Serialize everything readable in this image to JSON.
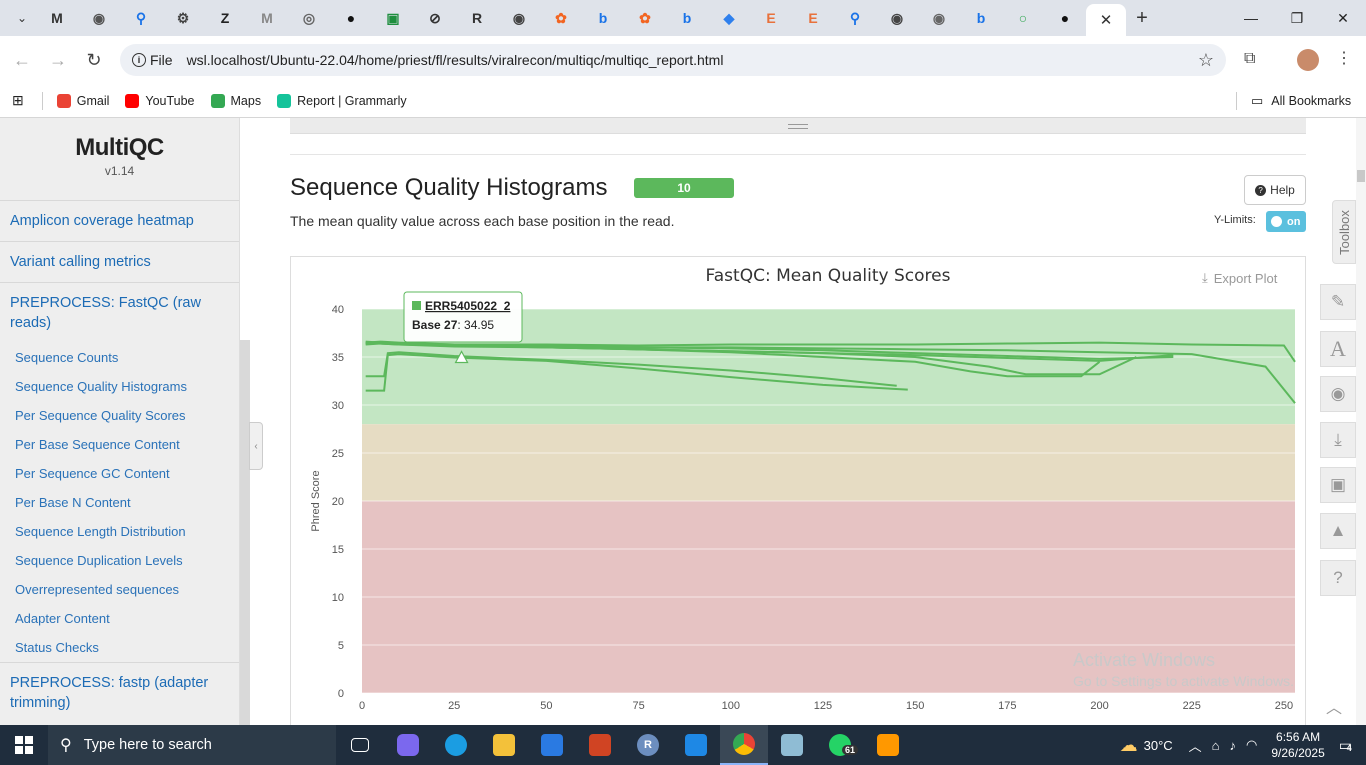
{
  "browser": {
    "tabs": [
      {
        "icon": "gmail-icon",
        "glyph": "M",
        "color": "#333333"
      },
      {
        "icon": "globe-icon",
        "glyph": "◉",
        "color": "#555555"
      },
      {
        "icon": "search-icon",
        "glyph": "⚲",
        "color": "#1a73e8"
      },
      {
        "icon": "settings-gear-icon",
        "glyph": "⚙",
        "color": "#444444"
      },
      {
        "icon": "z-logo-icon",
        "glyph": "Z",
        "color": "#222222"
      },
      {
        "icon": "mendeley-icon",
        "glyph": "M",
        "color": "#888888"
      },
      {
        "icon": "target-icon",
        "glyph": "◎",
        "color": "#666666"
      },
      {
        "icon": "github-icon",
        "glyph": "●",
        "color": "#111111"
      },
      {
        "icon": "green-app-icon",
        "glyph": "▣",
        "color": "#1e8e3e"
      },
      {
        "icon": "slash-circle-icon",
        "glyph": "⊘",
        "color": "#333333"
      },
      {
        "icon": "r6-icon",
        "glyph": "R",
        "color": "#333333"
      },
      {
        "icon": "circle-logo-icon",
        "glyph": "◉",
        "color": "#444444"
      },
      {
        "icon": "paw-icon",
        "glyph": "✿",
        "color": "#f26522"
      },
      {
        "icon": "bing-icon",
        "glyph": "b",
        "color": "#1a73e8"
      },
      {
        "icon": "paw-icon",
        "glyph": "✿",
        "color": "#f26522"
      },
      {
        "icon": "bing-icon",
        "glyph": "b",
        "color": "#1a73e8"
      },
      {
        "icon": "layers-icon",
        "glyph": "◆",
        "color": "#2f80ed"
      },
      {
        "icon": "e-letter-icon",
        "glyph": "E",
        "color": "#e8713b"
      },
      {
        "icon": "e-letter-icon",
        "glyph": "E",
        "color": "#e8713b"
      },
      {
        "icon": "search-icon",
        "glyph": "⚲",
        "color": "#1a73e8"
      },
      {
        "icon": "circle-logo-icon",
        "glyph": "◉",
        "color": "#444444"
      },
      {
        "icon": "globe-icon",
        "glyph": "◉",
        "color": "#666666"
      },
      {
        "icon": "bing-icon",
        "glyph": "b",
        "color": "#1a73e8"
      },
      {
        "icon": "ring-icon",
        "glyph": "○",
        "color": "#34a853"
      },
      {
        "icon": "github-icon",
        "glyph": "●",
        "color": "#111111"
      }
    ],
    "active_tab_close": "✕",
    "new_tab": "+",
    "url_scheme": "File",
    "url": "wsl.localhost/Ubuntu-22.04/home/priest/fl/results/viralrecon/multiqc/multiqc_report.html",
    "bookmarks": [
      {
        "label": "Gmail",
        "color": "#ea4335"
      },
      {
        "label": "YouTube",
        "color": "#ff0000"
      },
      {
        "label": "Maps",
        "color": "#34a853"
      },
      {
        "label": "Report | Grammarly",
        "color": "#15c39a"
      }
    ],
    "all_bookmarks": "All Bookmarks"
  },
  "sidebar": {
    "logo": "MultiQC",
    "version": "v1.14",
    "main_items": [
      "Amplicon coverage heatmap",
      "Variant calling metrics",
      "PREPROCESS: FastQC (raw reads)"
    ],
    "sub_items": [
      "Sequence Counts",
      "Sequence Quality Histograms",
      "Per Sequence Quality Scores",
      "Per Base Sequence Content",
      "Per Sequence GC Content",
      "Per Base N Content",
      "Sequence Length Distribution",
      "Sequence Duplication Levels",
      "Overrepresented sequences",
      "Adapter Content",
      "Status Checks"
    ],
    "last_item": "PREPROCESS: fastp (adapter trimming)"
  },
  "section": {
    "title": "Sequence Quality Histograms",
    "badge": "10",
    "description": "The mean quality value across each base position in the read.",
    "help_label": "Help",
    "ylimits_label": "Y-Limits:",
    "ylimits_toggle": "on",
    "export_label": "Export Plot"
  },
  "toolbox": {
    "label": "Toolbox",
    "buttons": [
      "pin-icon",
      "font-a-icon",
      "hide-eye-icon",
      "download-icon",
      "save-icon",
      "graduation-cap-icon",
      "help-circle-icon"
    ]
  },
  "watermark": {
    "line1": "Activate Windows",
    "line2": "Go to Settings to activate Windows."
  },
  "taskbar": {
    "search_placeholder": "Type here to search",
    "weather": "30°C",
    "time": "6:56 AM",
    "date": "9/26/2025",
    "whatsapp_badge": "61",
    "notifications": "4"
  },
  "chart_data": {
    "type": "line",
    "title": "FastQC: Mean Quality Scores",
    "xlabel": "",
    "ylabel": "Phred Score",
    "xlim": [
      0,
      253
    ],
    "ylim": [
      0,
      40
    ],
    "xticks": [
      0,
      25,
      50,
      75,
      100,
      125,
      150,
      175,
      200,
      225,
      250
    ],
    "yticks": [
      0,
      5,
      10,
      15,
      20,
      25,
      30,
      35,
      40
    ],
    "bands": [
      {
        "from": 28,
        "to": 40,
        "color": "#c3e6c3"
      },
      {
        "from": 20,
        "to": 28,
        "color": "#e6dcc3"
      },
      {
        "from": 0,
        "to": 20,
        "color": "#e6c3c3"
      }
    ],
    "line_color": "#5cb85c",
    "tooltip": {
      "series": "ERR5405022_2",
      "label": "Base 27",
      "value": "34.95",
      "x": 27,
      "y": 34.95
    },
    "series": [
      {
        "x": [
          1,
          6,
          7,
          10,
          25,
          50,
          75,
          100,
          125,
          148
        ],
        "y": [
          31.5,
          31.5,
          35.2,
          35.3,
          34.95,
          34.6,
          33.8,
          32.9,
          32.1,
          31.6
        ]
      },
      {
        "x": [
          1,
          6,
          7,
          10,
          25,
          50,
          75,
          100,
          125,
          145
        ],
        "y": [
          33.0,
          33.0,
          35.4,
          35.5,
          35.1,
          34.7,
          34.2,
          33.6,
          32.8,
          32.0
        ]
      },
      {
        "x": [
          1,
          5,
          10,
          25,
          50,
          75,
          100,
          125,
          150,
          175,
          200,
          220
        ],
        "y": [
          36.5,
          36.6,
          36.5,
          36.3,
          36.2,
          36.0,
          35.9,
          35.7,
          35.4,
          35.1,
          34.8,
          35.0
        ]
      },
      {
        "x": [
          1,
          5,
          10,
          25,
          50,
          75,
          100,
          125,
          150,
          175,
          200,
          220
        ],
        "y": [
          36.3,
          36.4,
          36.3,
          36.1,
          36.0,
          35.8,
          35.6,
          35.4,
          35.2,
          34.9,
          34.6,
          35.2
        ]
      },
      {
        "x": [
          1,
          5,
          10,
          25,
          50,
          75,
          100,
          125,
          150,
          170,
          180,
          200,
          210
        ],
        "y": [
          36.6,
          36.5,
          36.4,
          36.2,
          36.0,
          35.8,
          35.6,
          35.4,
          35.0,
          34.0,
          33.2,
          33.2,
          35.0
        ]
      },
      {
        "x": [
          1,
          5,
          10,
          25,
          50,
          75,
          100,
          125,
          150,
          175,
          200,
          225,
          250,
          253
        ],
        "y": [
          36.5,
          36.5,
          36.4,
          36.3,
          36.3,
          36.2,
          36.3,
          36.3,
          36.3,
          36.4,
          36.5,
          36.3,
          36.2,
          34.5
        ]
      },
      {
        "x": [
          1,
          5,
          10,
          25,
          50,
          75,
          100,
          125,
          150,
          175,
          200,
          225,
          245,
          253
        ],
        "y": [
          36.4,
          36.4,
          36.3,
          36.2,
          36.1,
          36.0,
          36.0,
          35.9,
          35.8,
          35.7,
          35.5,
          35.3,
          34.0,
          30.2
        ]
      },
      {
        "x": [
          1,
          5,
          10,
          25,
          50,
          75,
          100,
          125,
          150,
          165,
          175,
          195,
          200
        ],
        "y": [
          36.4,
          36.5,
          36.4,
          36.2,
          36.0,
          35.8,
          35.5,
          35.0,
          34.5,
          33.5,
          33.0,
          33.0,
          34.5
        ]
      }
    ]
  }
}
